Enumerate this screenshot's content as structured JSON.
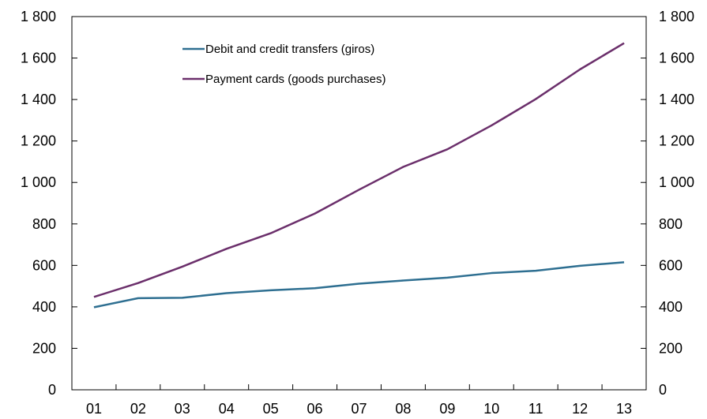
{
  "chart_data": {
    "type": "line",
    "title": "",
    "xlabel": "",
    "ylabel": "",
    "categories": [
      "01",
      "02",
      "03",
      "04",
      "05",
      "06",
      "07",
      "08",
      "09",
      "10",
      "11",
      "12",
      "13"
    ],
    "ylim": [
      0,
      1800
    ],
    "yticks": [
      0,
      200,
      400,
      600,
      800,
      1000,
      1200,
      1400,
      1600,
      1800
    ],
    "ytick_labels": [
      "0",
      "200",
      "400",
      "600",
      "800",
      "1 000",
      "1 200",
      "1 400",
      "1 600",
      "1 800"
    ],
    "y_axis_right": true,
    "grid": false,
    "legend_position": "top-left",
    "series": [
      {
        "name": "Debit and credit transfers (giros)",
        "color": "#2e6f91",
        "values": [
          398,
          442,
          444,
          466,
          480,
          490,
          512,
          527,
          541,
          563,
          574,
          598,
          615
        ]
      },
      {
        "name": "Payment cards (goods purchases)",
        "color": "#6b2f6b",
        "values": [
          448,
          515,
          594,
          680,
          755,
          850,
          965,
          1075,
          1160,
          1275,
          1402,
          1545,
          1672
        ]
      }
    ]
  }
}
